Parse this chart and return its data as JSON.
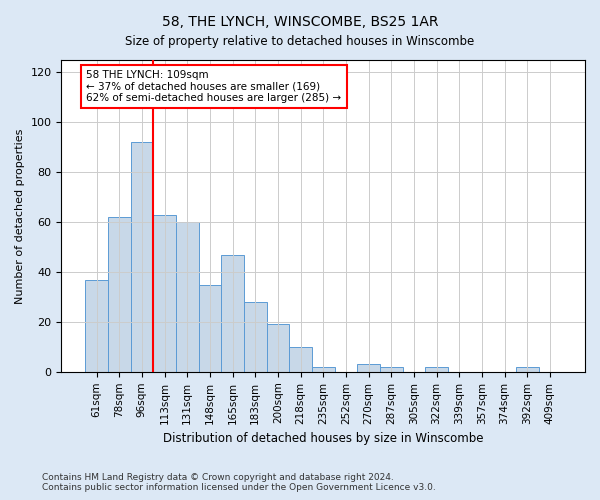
{
  "title1": "58, THE LYNCH, WINSCOMBE, BS25 1AR",
  "title2": "Size of property relative to detached houses in Winscombe",
  "xlabel": "Distribution of detached houses by size in Winscombe",
  "ylabel": "Number of detached properties",
  "categories": [
    "61sqm",
    "78sqm",
    "96sqm",
    "113sqm",
    "131sqm",
    "148sqm",
    "165sqm",
    "183sqm",
    "200sqm",
    "218sqm",
    "235sqm",
    "252sqm",
    "270sqm",
    "287sqm",
    "305sqm",
    "322sqm",
    "339sqm",
    "357sqm",
    "374sqm",
    "392sqm",
    "409sqm"
  ],
  "values": [
    37,
    62,
    92,
    63,
    60,
    35,
    47,
    28,
    19,
    10,
    2,
    0,
    3,
    2,
    0,
    2,
    0,
    0,
    0,
    2,
    0
  ],
  "bar_color": "#c8d8e8",
  "bar_edge_color": "#5b9bd5",
  "vline_x": 2.5,
  "vline_color": "red",
  "annotation_text": "58 THE LYNCH: 109sqm\n← 37% of detached houses are smaller (169)\n62% of semi-detached houses are larger (285) →",
  "annotation_box_color": "white",
  "annotation_box_edge": "red",
  "ylim": [
    0,
    125
  ],
  "yticks": [
    0,
    20,
    40,
    60,
    80,
    100,
    120
  ],
  "footer1": "Contains HM Land Registry data © Crown copyright and database right 2024.",
  "footer2": "Contains public sector information licensed under the Open Government Licence v3.0.",
  "background_color": "#dce8f5",
  "plot_background": "white",
  "grid_color": "#cccccc"
}
